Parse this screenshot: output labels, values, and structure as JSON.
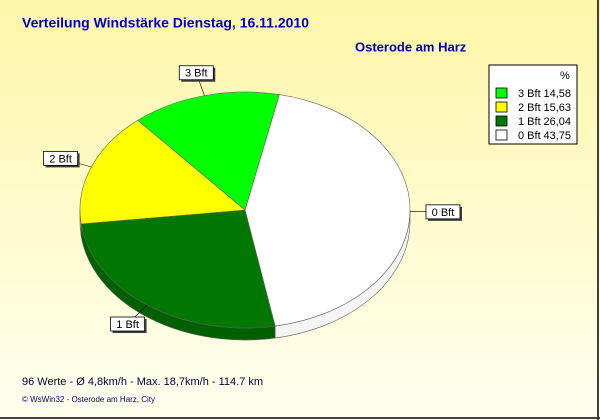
{
  "chart_data": {
    "type": "pie",
    "title": "Verteilung Windstärke  Dienstag, 16.11.2010",
    "subtitle": "Osterode am Harz",
    "legend_title": "%",
    "legend": "top-right",
    "categories": [
      "3 Bft",
      "2 Bft",
      "1 Bft",
      "0 Bft"
    ],
    "values": [
      14.58,
      15.63,
      26.04,
      43.75
    ],
    "value_labels": [
      "14,58",
      "15,63",
      "26,04",
      "43,75"
    ],
    "colors": [
      "#00ff00",
      "#ffff00",
      "#007800",
      "#ffffff"
    ],
    "footer": "96 Werte   -   Ø 4,8km/h   -  Max. 18,7km/h   -   114.7 km",
    "credit": "© WsWin32  -  Osterode am Harz, City"
  }
}
